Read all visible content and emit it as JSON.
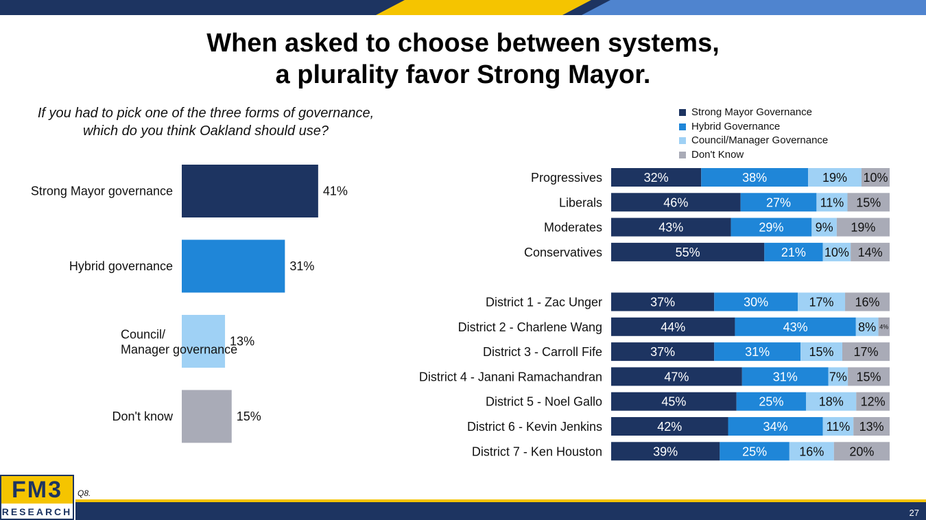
{
  "title_lines": [
    "When asked to choose between systems,",
    "a plurality favor Strong Mayor."
  ],
  "question_lines": [
    "If you had to pick one of the three forms of governance,",
    "which do you think Oakland should use?"
  ],
  "colors": {
    "strong": "#1d3461",
    "hybrid": "#1f86d8",
    "council": "#9fd1f5",
    "dontknow": "#a9abb7",
    "band_navy": "#1d3461",
    "band_gold": "#f5c400",
    "band_blue": "#4f84cf"
  },
  "chart_data": [
    {
      "type": "bar",
      "orientation": "horizontal",
      "categories": [
        "Strong Mayor governance",
        "Hybrid governance",
        "Council/\nManager governance",
        "Don't know"
      ],
      "values": [
        41,
        31,
        13,
        15
      ],
      "value_labels": [
        "41%",
        "31%",
        "13%",
        "15%"
      ],
      "xlim": [
        0,
        100
      ]
    },
    {
      "type": "bar",
      "orientation": "horizontal",
      "stacked": true,
      "legend_position": "top-right",
      "series": [
        {
          "name": "Strong Mayor Governance",
          "color_key": "strong"
        },
        {
          "name": "Hybrid Governance",
          "color_key": "hybrid"
        },
        {
          "name": "Council/Manager Governance",
          "color_key": "council"
        },
        {
          "name": "Don't Know",
          "color_key": "dontknow"
        }
      ],
      "groups": [
        {
          "rows": [
            {
              "label": "Progressives",
              "values": [
                32,
                38,
                19,
                10
              ]
            },
            {
              "label": "Liberals",
              "values": [
                46,
                27,
                11,
                15
              ]
            },
            {
              "label": "Moderates",
              "values": [
                43,
                29,
                9,
                19
              ]
            },
            {
              "label": "Conservatives",
              "values": [
                55,
                21,
                10,
                14
              ]
            }
          ]
        },
        {
          "rows": [
            {
              "label": "District 1 - Zac Unger",
              "values": [
                37,
                30,
                17,
                16
              ]
            },
            {
              "label": "District 2 - Charlene Wang",
              "values": [
                44,
                43,
                8,
                4
              ]
            },
            {
              "label": "District 3 - Carroll Fife",
              "values": [
                37,
                31,
                15,
                17
              ]
            },
            {
              "label": "District 4 - Janani Ramachandran",
              "values": [
                47,
                31,
                7,
                15
              ]
            },
            {
              "label": "District 5 - Noel Gallo",
              "values": [
                45,
                25,
                18,
                12
              ]
            },
            {
              "label": "District 6 - Kevin Jenkins",
              "values": [
                42,
                34,
                11,
                13
              ]
            },
            {
              "label": "District 7 - Ken Houston",
              "values": [
                39,
                25,
                16,
                20
              ]
            }
          ]
        }
      ]
    }
  ],
  "footer": {
    "question_ref": "Q8.",
    "page_number": "27",
    "logo_top": "FM3",
    "logo_bottom": "RESEARCH"
  }
}
